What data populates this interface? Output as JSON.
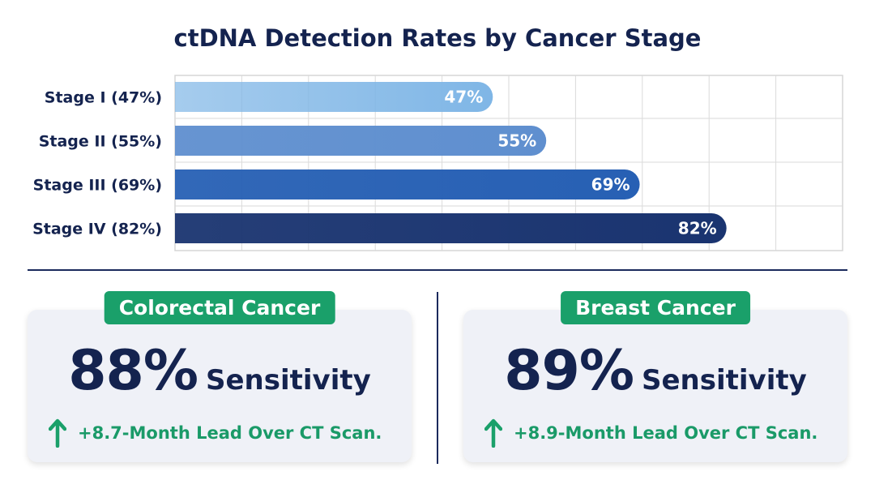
{
  "chart_data": {
    "type": "bar",
    "orientation": "horizontal",
    "title": "ctDNA Detection Rates by Cancer Stage",
    "categories": [
      "Stage I (47%)",
      "Stage II (55%)",
      "Stage III (69%)",
      "Stage IV (82%)"
    ],
    "values": [
      47,
      55,
      69,
      82
    ],
    "data_labels": [
      "47%",
      "55%",
      "69%",
      "82%"
    ],
    "xlim": [
      0,
      100
    ],
    "grid": true,
    "colors": [
      "#7fb6e6",
      "#5f8fcf",
      "#2760b4",
      "#1a3470"
    ]
  },
  "cards": [
    {
      "badge": "Colorectal Cancer",
      "value": "88%",
      "metric": "Sensitivity",
      "lead": "+8.7-Month Lead Over CT Scan.",
      "icon": "arrow-up-icon"
    },
    {
      "badge": "Breast Cancer",
      "value": "89%",
      "metric": "Sensitivity",
      "lead": "+8.9-Month Lead Over CT Scan.",
      "icon": "arrow-up-icon"
    }
  ],
  "colors": {
    "navy": "#14234f",
    "green": "#1aa06a"
  }
}
